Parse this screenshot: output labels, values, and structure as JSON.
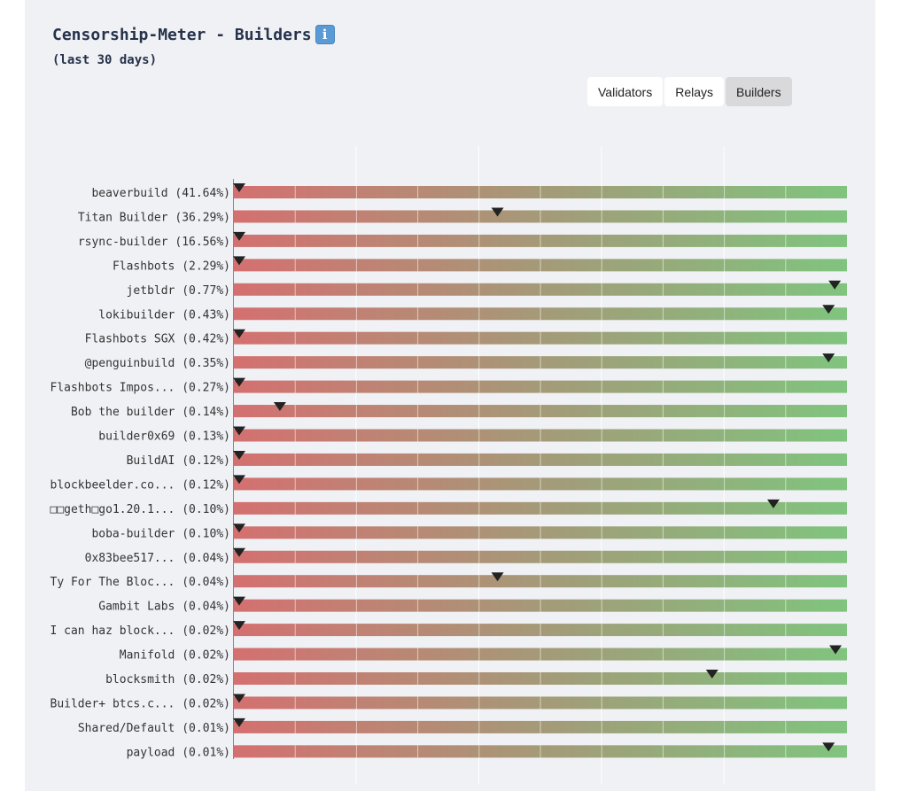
{
  "header": {
    "title": "Censorship-Meter - Builders",
    "subtitle": "(last 30 days)",
    "info_icon": "info-icon"
  },
  "tabs": [
    {
      "label": "Validators",
      "active": false
    },
    {
      "label": "Relays",
      "active": false
    },
    {
      "label": "Builders",
      "active": true
    }
  ],
  "colors": {
    "low": "#d47070",
    "mid": "#a49a78",
    "high": "#80c47e",
    "marker": "#222222"
  },
  "chart_data": {
    "type": "bar",
    "xlim": [
      0,
      1
    ],
    "grid": true,
    "rows": [
      {
        "label": "beaverbuild (41.64%)",
        "value": 0.0
      },
      {
        "label": "Titan Builder (36.29%)",
        "value": 0.43
      },
      {
        "label": "rsync-builder (16.56%)",
        "value": 0.0
      },
      {
        "label": "Flashbots (2.29%)",
        "value": 0.0
      },
      {
        "label": "jetbldr (0.77%)",
        "value": 0.98
      },
      {
        "label": "lokibuilder (0.43%)",
        "value": 0.97
      },
      {
        "label": "Flashbots SGX (0.42%)",
        "value": 0.0
      },
      {
        "label": "@penguinbuild (0.35%)",
        "value": 0.97
      },
      {
        "label": "Flashbots Impos... (0.27%)",
        "value": 0.0
      },
      {
        "label": "Bob the builder (0.14%)",
        "value": 0.075
      },
      {
        "label": "builder0x69 (0.13%)",
        "value": 0.0
      },
      {
        "label": "BuildAI (0.12%)",
        "value": 0.0
      },
      {
        "label": "blockbeelder.co... (0.12%)",
        "value": 0.0
      },
      {
        "label": "□□geth□go1.20.1... (0.10%)",
        "value": 0.88
      },
      {
        "label": "boba-builder (0.10%)",
        "value": 0.0
      },
      {
        "label": "0x83bee517... (0.04%)",
        "value": 0.0
      },
      {
        "label": "Ty For The Bloc... (0.04%)",
        "value": 0.43
      },
      {
        "label": "Gambit Labs (0.04%)",
        "value": 0.0
      },
      {
        "label": "I can haz block... (0.02%)",
        "value": 0.0
      },
      {
        "label": "Manifold (0.02%)",
        "value": 0.99
      },
      {
        "label": "blocksmith (0.02%)",
        "value": 0.78
      },
      {
        "label": "Builder+ btcs.c... (0.02%)",
        "value": 0.0
      },
      {
        "label": "Shared/Default (0.01%)",
        "value": 0.0
      },
      {
        "label": "payload (0.01%)",
        "value": 0.97
      }
    ]
  }
}
